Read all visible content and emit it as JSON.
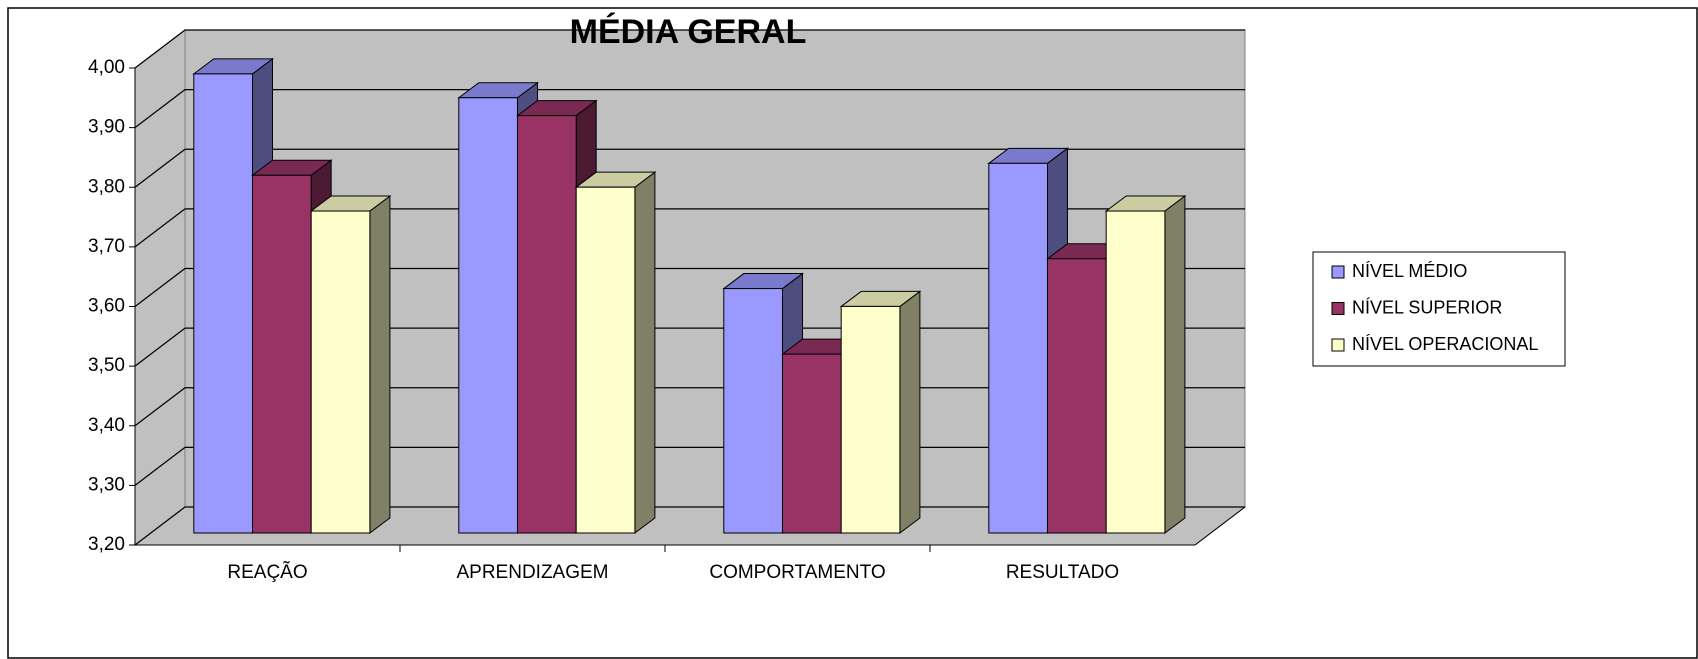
{
  "chart_data": {
    "type": "bar3d",
    "title": "MÉDIA GERAL",
    "categories": [
      "REAÇÃO",
      "APRENDIZAGEM",
      "COMPORTAMENTO",
      "RESULTADO"
    ],
    "series": [
      {
        "name": "NÍVEL MÉDIO",
        "color": "#9999ff",
        "values": [
          3.97,
          3.93,
          3.61,
          3.82
        ]
      },
      {
        "name": "NÍVEL SUPERIOR",
        "color": "#993366",
        "values": [
          3.8,
          3.9,
          3.5,
          3.66
        ]
      },
      {
        "name": "NÍVEL OPERACIONAL",
        "color": "#ffffcc",
        "values": [
          3.74,
          3.78,
          3.58,
          3.74
        ]
      }
    ],
    "ylim": [
      3.2,
      4.0
    ],
    "yticks": [
      {
        "value": 3.2,
        "label": "3,20"
      },
      {
        "value": 3.3,
        "label": "3,30"
      },
      {
        "value": 3.4,
        "label": "3,40"
      },
      {
        "value": 3.5,
        "label": "3,50"
      },
      {
        "value": 3.6,
        "label": "3,60"
      },
      {
        "value": 3.7,
        "label": "3,70"
      },
      {
        "value": 3.8,
        "label": "3,80"
      },
      {
        "value": 3.9,
        "label": "3,90"
      },
      {
        "value": 4.0,
        "label": "4,00"
      }
    ],
    "grid": true,
    "legend": "right"
  }
}
